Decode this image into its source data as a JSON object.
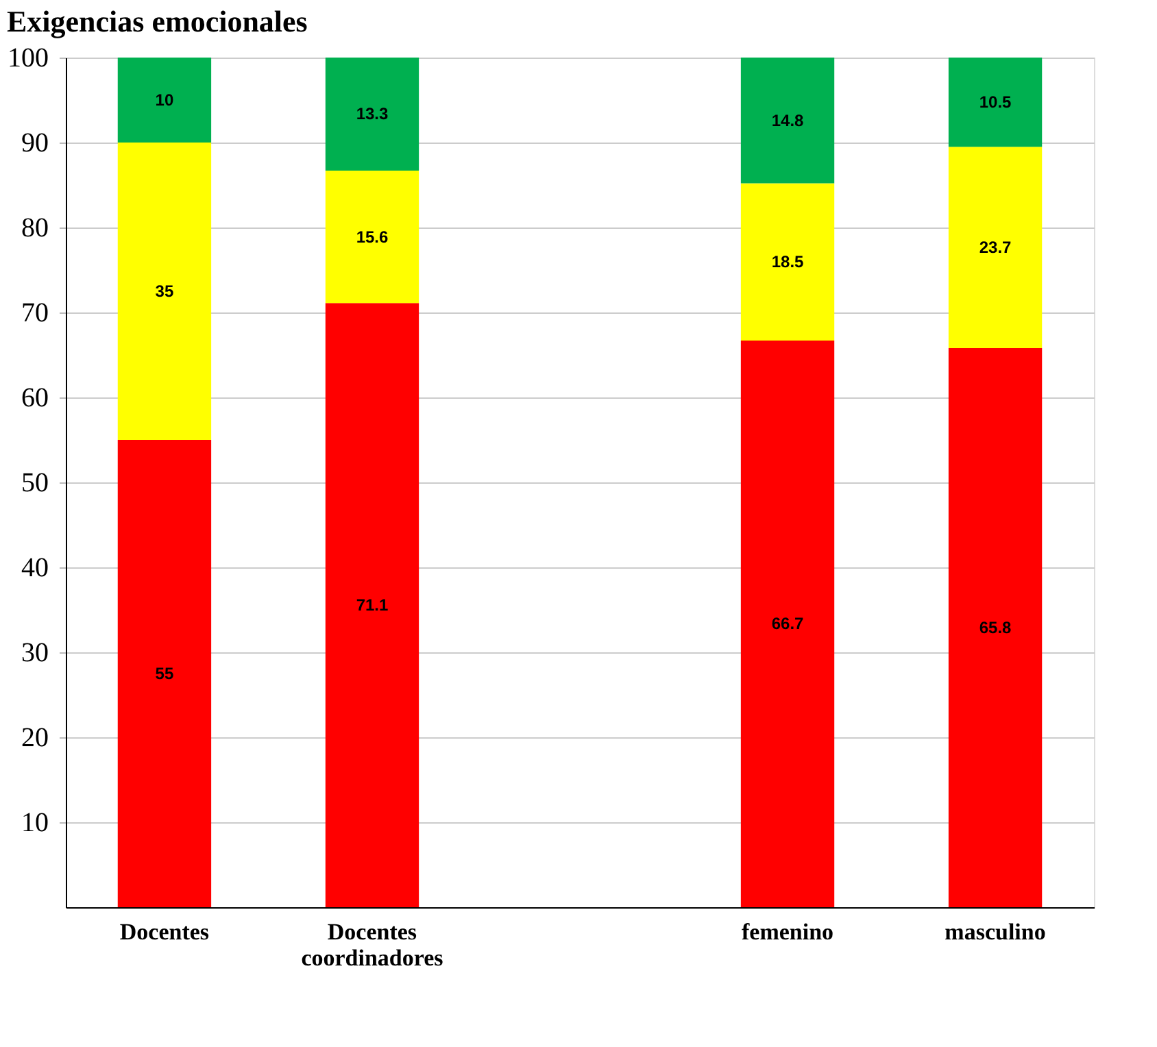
{
  "chart_data": {
    "type": "bar",
    "title": "Exigencias emocionales",
    "categories": [
      "Docentes",
      "Docentes coordinadores",
      null,
      "femenino",
      "masculino"
    ],
    "stacked": true,
    "series": [
      {
        "color": "#ff0000",
        "values": [
          55,
          71.1,
          null,
          66.7,
          65.8
        ]
      },
      {
        "color": "#ffff00",
        "values": [
          35,
          15.6,
          null,
          18.5,
          23.7
        ]
      },
      {
        "color": "#00b050",
        "values": [
          10,
          13.3,
          null,
          14.8,
          10.5
        ]
      }
    ],
    "ylim": [
      0,
      100
    ],
    "yticks": [
      10,
      20,
      30,
      40,
      50,
      60,
      70,
      80,
      90,
      100
    ],
    "grid": "y",
    "data_labels": true
  }
}
